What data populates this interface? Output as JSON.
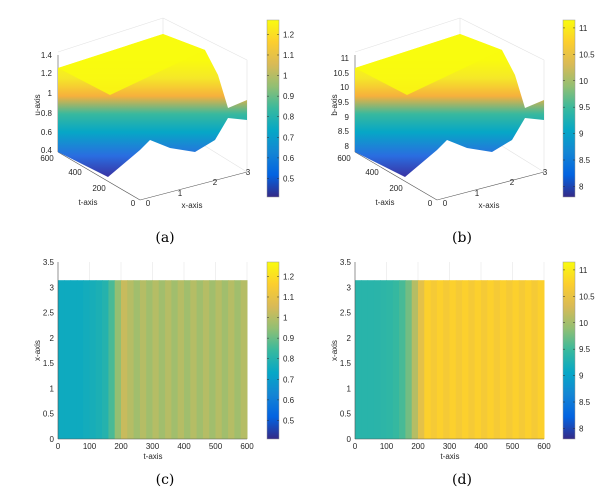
{
  "colormap": [
    "#352a87",
    "#0363e1",
    "#1485d4",
    "#06a7c6",
    "#38b99e",
    "#92bf73",
    "#d9ba56",
    "#fcce2e",
    "#f9fb0e"
  ],
  "chart_data": [
    {
      "panel": "a",
      "caption": "(a)",
      "type": "surface",
      "xlabel": "x-axis",
      "ylabel": "t-axis",
      "zlabel": "u-axis",
      "x_ticks": [
        "0",
        "1",
        "2",
        "3"
      ],
      "t_ticks": [
        "0",
        "200",
        "400",
        "600"
      ],
      "z_ticks": [
        "0.4",
        "0.6",
        "0.8",
        "1",
        "1.2",
        "1.4"
      ],
      "xlim": [
        0,
        3.14
      ],
      "tlim": [
        0,
        600
      ],
      "zlim": [
        0.4,
        1.4
      ],
      "colorbar": {
        "range": [
          0.41,
          1.27
        ],
        "ticks": [
          0.5,
          0.6,
          0.7,
          0.8,
          0.9,
          1,
          1.1,
          1.2
        ]
      }
    },
    {
      "panel": "b",
      "caption": "(b)",
      "type": "surface",
      "xlabel": "x-axis",
      "ylabel": "t-axis",
      "zlabel": "b-axis",
      "x_ticks": [
        "0",
        "1",
        "2",
        "3"
      ],
      "t_ticks": [
        "0",
        "200",
        "400",
        "600"
      ],
      "z_ticks": [
        "8",
        "8.5",
        "9",
        "9.5",
        "10",
        "10.5",
        "11"
      ],
      "xlim": [
        0,
        3.14
      ],
      "tlim": [
        0,
        600
      ],
      "zlim": [
        8,
        11
      ],
      "colorbar": {
        "range": [
          7.8,
          11.15
        ],
        "ticks": [
          8,
          8.5,
          9,
          9.5,
          10,
          10.5,
          11
        ]
      }
    },
    {
      "panel": "c",
      "caption": "(c)",
      "type": "heatmap",
      "xlabel": "t-axis",
      "ylabel": "x-axis",
      "xlim": [
        0,
        600
      ],
      "ylim": [
        0,
        3.5
      ],
      "data_ymax": 3.14,
      "x_ticks": [
        0,
        100,
        200,
        300,
        400,
        500,
        600
      ],
      "y_ticks": [
        0,
        0.5,
        1,
        1.5,
        2,
        2.5,
        3,
        3.5
      ],
      "t": [
        0,
        20,
        40,
        60,
        80,
        100,
        120,
        140,
        160,
        180,
        200,
        220,
        240,
        260,
        280,
        300,
        320,
        340,
        360,
        380,
        400,
        420,
        440,
        460,
        480,
        500,
        520,
        540,
        560,
        580
      ],
      "values": [
        0.75,
        0.75,
        0.75,
        0.75,
        0.76,
        0.77,
        0.78,
        0.8,
        0.86,
        0.95,
        1.03,
        1.0,
        0.97,
        1.0,
        0.97,
        1.0,
        0.97,
        1.0,
        0.97,
        1.0,
        0.97,
        1.0,
        0.97,
        1.0,
        0.97,
        1.0,
        0.97,
        1.0,
        0.97,
        1.0
      ],
      "colorbar": {
        "range": [
          0.41,
          1.27
        ],
        "ticks": [
          0.5,
          0.6,
          0.7,
          0.8,
          0.9,
          1,
          1.1,
          1.2
        ]
      }
    },
    {
      "panel": "d",
      "caption": "(d)",
      "type": "heatmap",
      "xlabel": "t-axis",
      "ylabel": "x-axis",
      "xlim": [
        0,
        600
      ],
      "ylim": [
        0,
        3.5
      ],
      "data_ymax": 3.14,
      "x_ticks": [
        0,
        100,
        200,
        300,
        400,
        500,
        600
      ],
      "y_ticks": [
        0,
        0.5,
        1,
        1.5,
        2,
        2.5,
        3,
        3.5
      ],
      "t": [
        0,
        20,
        40,
        60,
        80,
        100,
        120,
        140,
        160,
        180,
        200,
        220,
        240,
        260,
        280,
        300,
        320,
        340,
        360,
        380,
        400,
        420,
        440,
        460,
        480,
        500,
        520,
        540,
        560,
        580
      ],
      "values": [
        9.35,
        9.35,
        9.35,
        9.36,
        9.38,
        9.4,
        9.45,
        9.55,
        9.75,
        10.1,
        10.45,
        10.75,
        10.65,
        10.75,
        10.65,
        10.75,
        10.65,
        10.75,
        10.65,
        10.75,
        10.65,
        10.75,
        10.65,
        10.75,
        10.65,
        10.75,
        10.65,
        10.75,
        10.65,
        10.75
      ],
      "colorbar": {
        "range": [
          7.8,
          11.15
        ],
        "ticks": [
          8,
          8.5,
          9,
          9.5,
          10,
          10.5,
          11
        ]
      }
    }
  ]
}
